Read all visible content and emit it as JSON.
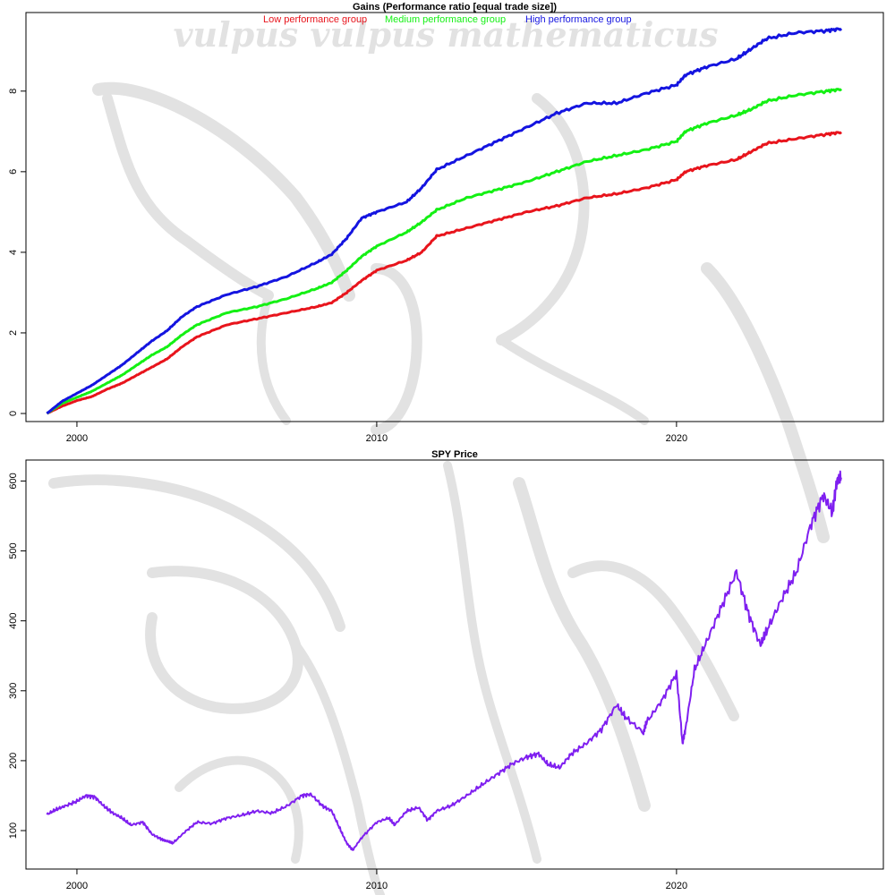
{
  "watermark": {
    "text": "vulpus vulpus mathematicus",
    "color": "#e2e2e2"
  },
  "chart_data": [
    {
      "type": "line",
      "title": "Gains (Performance ratio [equal trade size])",
      "xlabel": "",
      "ylabel": "",
      "xlim": [
        1998.3,
        2026.9
      ],
      "ylim": [
        -0.2,
        9.95
      ],
      "xticks": [
        2000,
        2010,
        2020
      ],
      "yticks": [
        0,
        2,
        4,
        6,
        8
      ],
      "grid": false,
      "legend_placement": "top",
      "series": [
        {
          "name": "Low performance group",
          "color": "#e8141c",
          "x": [
            1999.0,
            1999.5,
            2000.0,
            2000.5,
            2001.0,
            2001.5,
            2002.0,
            2002.5,
            2003.0,
            2003.5,
            2004.0,
            2005.0,
            2006.0,
            2007.0,
            2008.0,
            2008.5,
            2009.0,
            2009.5,
            2010.0,
            2011.0,
            2011.5,
            2012.0,
            2013.0,
            2014.0,
            2015.0,
            2016.0,
            2017.0,
            2018.0,
            2019.0,
            2020.0,
            2020.3,
            2021.0,
            2022.0,
            2022.5,
            2023.0,
            2024.0,
            2025.0,
            2025.5
          ],
          "y": [
            0.0,
            0.18,
            0.32,
            0.42,
            0.6,
            0.75,
            0.95,
            1.15,
            1.35,
            1.65,
            1.9,
            2.2,
            2.35,
            2.5,
            2.65,
            2.75,
            3.0,
            3.3,
            3.55,
            3.8,
            4.0,
            4.4,
            4.6,
            4.8,
            5.0,
            5.15,
            5.35,
            5.45,
            5.6,
            5.8,
            6.0,
            6.15,
            6.3,
            6.5,
            6.7,
            6.82,
            6.93,
            6.98
          ]
        },
        {
          "name": "Medium performance group",
          "color": "#14f014",
          "x": [
            1999.0,
            1999.5,
            2000.0,
            2000.5,
            2001.0,
            2001.5,
            2002.0,
            2002.5,
            2003.0,
            2003.5,
            2004.0,
            2005.0,
            2006.0,
            2007.0,
            2008.0,
            2008.5,
            2009.0,
            2009.5,
            2010.0,
            2011.0,
            2011.5,
            2012.0,
            2013.0,
            2014.0,
            2015.0,
            2016.0,
            2017.0,
            2018.0,
            2019.0,
            2020.0,
            2020.3,
            2021.0,
            2022.0,
            2022.5,
            2023.0,
            2024.0,
            2025.0,
            2025.5
          ],
          "y": [
            0.0,
            0.25,
            0.4,
            0.55,
            0.75,
            0.95,
            1.2,
            1.45,
            1.65,
            1.95,
            2.2,
            2.5,
            2.65,
            2.85,
            3.1,
            3.25,
            3.55,
            3.9,
            4.15,
            4.5,
            4.75,
            5.05,
            5.35,
            5.55,
            5.75,
            6.0,
            6.25,
            6.4,
            6.55,
            6.75,
            7.0,
            7.2,
            7.4,
            7.55,
            7.75,
            7.9,
            8.0,
            8.05
          ]
        },
        {
          "name": "High performance group",
          "color": "#1414e0",
          "x": [
            1999.0,
            1999.5,
            2000.0,
            2000.5,
            2001.0,
            2001.5,
            2002.0,
            2002.5,
            2003.0,
            2003.5,
            2004.0,
            2005.0,
            2006.0,
            2007.0,
            2008.0,
            2008.5,
            2009.0,
            2009.5,
            2010.0,
            2011.0,
            2011.5,
            2012.0,
            2013.0,
            2014.0,
            2015.0,
            2016.0,
            2017.0,
            2018.0,
            2019.0,
            2020.0,
            2020.3,
            2021.0,
            2022.0,
            2022.5,
            2023.0,
            2024.0,
            2025.0,
            2025.5
          ],
          "y": [
            0.0,
            0.3,
            0.5,
            0.7,
            0.95,
            1.2,
            1.5,
            1.8,
            2.05,
            2.4,
            2.65,
            2.95,
            3.15,
            3.4,
            3.75,
            3.95,
            4.35,
            4.85,
            5.0,
            5.25,
            5.6,
            6.05,
            6.4,
            6.75,
            7.1,
            7.45,
            7.7,
            7.7,
            7.95,
            8.15,
            8.4,
            8.6,
            8.8,
            9.05,
            9.3,
            9.45,
            9.5,
            9.55
          ]
        }
      ]
    },
    {
      "type": "line",
      "title": "SPY Price",
      "xlabel": "",
      "ylabel": "",
      "xlim": [
        1998.3,
        2026.9
      ],
      "ylim": [
        45,
        630
      ],
      "xticks": [
        2000,
        2010,
        2020
      ],
      "yticks": [
        100,
        200,
        300,
        400,
        500,
        600
      ],
      "grid": false,
      "series": [
        {
          "color": "#7f1ff0",
          "x": [
            1999.0,
            1999.3,
            1999.6,
            2000.0,
            2000.3,
            2000.6,
            2000.9,
            2001.2,
            2001.5,
            2001.8,
            2002.2,
            2002.5,
            2002.8,
            2003.0,
            2003.2,
            2003.6,
            2004.0,
            2004.5,
            2005.0,
            2005.5,
            2006.0,
            2006.5,
            2007.0,
            2007.5,
            2007.8,
            2008.2,
            2008.5,
            2008.8,
            2009.0,
            2009.2,
            2009.5,
            2010.0,
            2010.4,
            2010.6,
            2011.0,
            2011.4,
            2011.7,
            2012.0,
            2012.5,
            2013.0,
            2013.5,
            2014.0,
            2014.5,
            2015.0,
            2015.4,
            2015.7,
            2016.1,
            2016.5,
            2017.0,
            2017.5,
            2018.0,
            2018.3,
            2018.9,
            2019.0,
            2019.5,
            2020.0,
            2020.2,
            2020.3,
            2020.6,
            2021.0,
            2021.5,
            2022.0,
            2022.4,
            2022.8,
            2023.0,
            2023.5,
            2024.0,
            2024.5,
            2024.9,
            2025.2,
            2025.35,
            2025.5
          ],
          "y": [
            123,
            130,
            135,
            142,
            150,
            148,
            135,
            125,
            118,
            108,
            112,
            95,
            88,
            85,
            82,
            98,
            112,
            110,
            118,
            122,
            128,
            125,
            135,
            150,
            152,
            135,
            128,
            100,
            82,
            72,
            90,
            112,
            118,
            108,
            128,
            133,
            115,
            128,
            136,
            150,
            165,
            180,
            195,
            205,
            210,
            195,
            190,
            210,
            225,
            245,
            280,
            262,
            240,
            255,
            285,
            325,
            225,
            245,
            330,
            370,
            420,
            470,
            410,
            365,
            385,
            430,
            470,
            540,
            580,
            555,
            600,
            605
          ]
        }
      ]
    }
  ]
}
